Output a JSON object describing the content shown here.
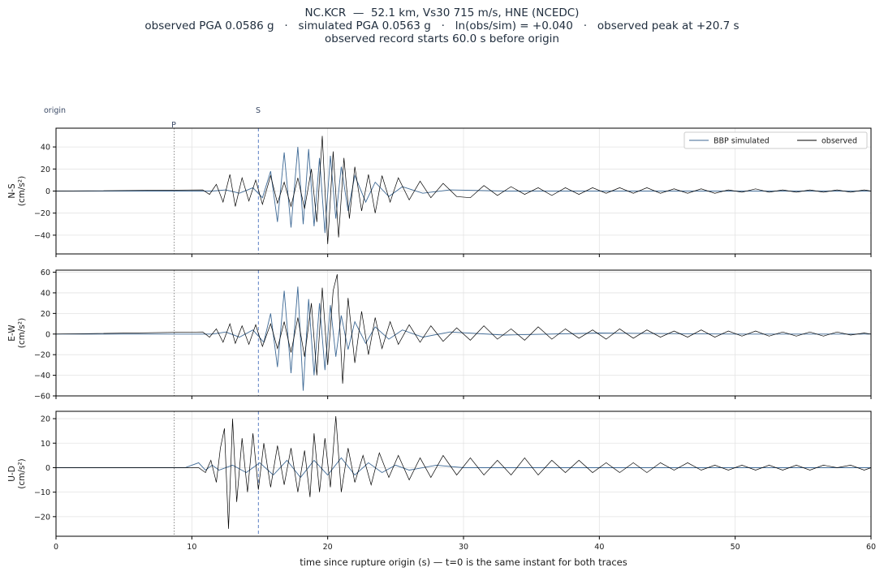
{
  "title": {
    "line1": "NC.KCR  —  52.1 km, Vs30 715 m/s, HNE (NCEDC)",
    "line2": "observed PGA 0.0586 g   ·   simulated PGA 0.0563 g   ·   ln(obs/sim) = +0.040   ·   observed peak at +20.7 s",
    "line3": "observed record starts 60.0 s before origin"
  },
  "colors": {
    "simulated": "#3f6a96",
    "observed": "#000000",
    "s_marker": "#5b7fc4",
    "p_marker": "#888888",
    "grid": "#e3e3e3"
  },
  "chart_data": {
    "type": "line",
    "x_range": [
      0,
      60
    ],
    "xlabel": "time since rupture origin (s)   —   t=0 is the same instant for both traces",
    "x_ticks": [
      0,
      10,
      20,
      30,
      40,
      50,
      60
    ],
    "markers": {
      "origin_label": "origin",
      "origin_t": 0,
      "p_label": "P",
      "p_t": 8.7,
      "s_label": "S",
      "s_t": 14.9
    },
    "legend": {
      "location": "top-right",
      "entries": [
        "BBP simulated",
        "observed"
      ]
    },
    "grid": true,
    "panels": [
      {
        "ylabel": "N-S",
        "yunit": "(cm/s²)",
        "ylim": [
          -57,
          57
        ],
        "y_ticks": [
          -40,
          -20,
          0,
          20,
          40
        ],
        "series": [
          {
            "name": "BBP simulated",
            "t": [
              0,
              10,
              11.5,
              12.5,
              13.5,
              14.5,
              15.2,
              15.8,
              16.3,
              16.8,
              17.3,
              17.8,
              18.2,
              18.6,
              19.0,
              19.4,
              19.8,
              20.2,
              20.6,
              21.0,
              21.5,
              22.0,
              22.8,
              23.5,
              24.5,
              25.5,
              27,
              29,
              33,
              40,
              50,
              60
            ],
            "values": [
              0,
              0,
              0,
              1,
              -2,
              3,
              -6,
              18,
              -28,
              35,
              -33,
              40,
              -30,
              38,
              -32,
              30,
              -38,
              32,
              -25,
              22,
              -18,
              14,
              -10,
              8,
              -5,
              4,
              -2,
              1,
              0,
              0,
              0,
              0
            ]
          },
          {
            "name": "observed",
            "t": [
              0,
              10.8,
              11.3,
              11.8,
              12.3,
              12.8,
              13.2,
              13.7,
              14.2,
              14.7,
              15.2,
              15.8,
              16.3,
              16.8,
              17.3,
              17.8,
              18.3,
              18.8,
              19.2,
              19.6,
              20.0,
              20.4,
              20.8,
              21.2,
              21.6,
              22.0,
              22.5,
              23.0,
              23.5,
              24.0,
              24.6,
              25.2,
              26.0,
              26.8,
              27.6,
              28.5,
              29.5,
              30.5,
              31.5,
              32.5,
              33.5,
              34.5,
              35.5,
              36.5,
              37.5,
              38.5,
              39.5,
              40.5,
              41.5,
              42.5,
              43.5,
              44.5,
              45.5,
              46.5,
              47.5,
              48.5,
              49.5,
              50.5,
              51.5,
              52.5,
              53.5,
              54.5,
              55.5,
              56.5,
              57.5,
              58.5,
              59.5,
              60
            ],
            "values": [
              0,
              1,
              -3,
              6,
              -10,
              15,
              -14,
              12,
              -9,
              10,
              -12,
              14,
              -11,
              8,
              -14,
              12,
              -16,
              20,
              -28,
              50,
              -48,
              36,
              -42,
              30,
              -25,
              22,
              -18,
              15,
              -20,
              14,
              -10,
              12,
              -8,
              9,
              -6,
              7,
              -5,
              -6,
              5,
              -4,
              4,
              -3,
              3,
              -4,
              3,
              -3,
              3,
              -2,
              3,
              -2,
              3,
              -2,
              2,
              -2,
              2,
              -2,
              1,
              -1,
              2,
              -1,
              1,
              -1,
              1,
              -1,
              1,
              -1,
              1,
              0
            ]
          }
        ]
      },
      {
        "ylabel": "E-W",
        "yunit": "(cm/s²)",
        "ylim": [
          -60,
          62
        ],
        "y_ticks": [
          -60,
          -40,
          -20,
          0,
          20,
          40,
          60
        ],
        "series": [
          {
            "name": "BBP simulated",
            "t": [
              0,
              10,
              11.5,
              12.5,
              13.5,
              14.5,
              15.3,
              15.8,
              16.3,
              16.8,
              17.3,
              17.8,
              18.2,
              18.6,
              19.0,
              19.4,
              19.8,
              20.2,
              20.6,
              21.0,
              21.5,
              22.0,
              22.8,
              23.5,
              24.5,
              25.5,
              27,
              29,
              33,
              40,
              50,
              60
            ],
            "values": [
              0,
              0,
              0,
              2,
              -3,
              4,
              -8,
              20,
              -32,
              42,
              -38,
              46,
              -55,
              34,
              -40,
              30,
              -35,
              28,
              -22,
              18,
              -15,
              12,
              -9,
              7,
              -5,
              4,
              -3,
              2,
              -1,
              1,
              0,
              0
            ]
          },
          {
            "name": "observed",
            "t": [
              0,
              10.8,
              11.3,
              11.8,
              12.3,
              12.8,
              13.2,
              13.7,
              14.2,
              14.7,
              15.2,
              15.8,
              16.3,
              16.8,
              17.3,
              17.8,
              18.3,
              18.8,
              19.2,
              19.6,
              20.0,
              20.4,
              20.7,
              21.1,
              21.5,
              22.0,
              22.5,
              23.0,
              23.5,
              24.0,
              24.6,
              25.2,
              26.0,
              26.8,
              27.6,
              28.5,
              29.5,
              30.5,
              31.5,
              32.5,
              33.5,
              34.5,
              35.5,
              36.5,
              37.5,
              38.5,
              39.5,
              40.5,
              41.5,
              42.5,
              43.5,
              44.5,
              45.5,
              46.5,
              47.5,
              48.5,
              49.5,
              50.5,
              51.5,
              52.5,
              53.5,
              54.5,
              55.5,
              56.5,
              57.5,
              58.5,
              59.5,
              60
            ],
            "values": [
              0,
              2,
              -3,
              5,
              -8,
              10,
              -9,
              8,
              -10,
              9,
              -12,
              10,
              -14,
              12,
              -18,
              16,
              -22,
              30,
              -40,
              45,
              -30,
              42,
              58,
              -48,
              35,
              -28,
              22,
              -20,
              16,
              -14,
              12,
              -10,
              9,
              -8,
              8,
              -7,
              6,
              -6,
              8,
              -5,
              5,
              -6,
              7,
              -5,
              5,
              -4,
              4,
              -5,
              5,
              -4,
              4,
              -3,
              3,
              -3,
              4,
              -3,
              3,
              -2,
              3,
              -2,
              2,
              -2,
              2,
              -2,
              2,
              -1,
              1,
              0
            ]
          }
        ]
      },
      {
        "ylabel": "U-D",
        "yunit": "(cm/s²)",
        "ylim": [
          -28,
          23
        ],
        "y_ticks": [
          -20,
          -10,
          0,
          10,
          20
        ],
        "series": [
          {
            "name": "BBP simulated",
            "t": [
              0,
              9.5,
              10,
              10.5,
              11,
              11.5,
              12,
              13,
              14,
              15,
              16,
              17,
              18,
              19,
              20,
              21,
              22,
              23,
              24,
              25,
              26,
              28,
              30,
              33,
              37,
              42,
              48,
              60
            ],
            "values": [
              0,
              0,
              1,
              2,
              -1,
              1,
              -1,
              1,
              -2,
              2,
              -3,
              3,
              -4,
              3,
              -3,
              4,
              -3,
              2,
              -2,
              1,
              -1,
              1,
              0,
              0,
              0,
              0,
              0,
              0
            ]
          },
          {
            "name": "observed",
            "t": [
              0,
              10.5,
              11,
              11.4,
              11.8,
              12.1,
              12.4,
              12.7,
              13.0,
              13.3,
              13.7,
              14.1,
              14.5,
              14.9,
              15.3,
              15.8,
              16.3,
              16.8,
              17.3,
              17.8,
              18.3,
              18.7,
              19.0,
              19.4,
              19.8,
              20.2,
              20.6,
              21.0,
              21.5,
              22.0,
              22.6,
              23.2,
              23.8,
              24.5,
              25.2,
              26.0,
              26.8,
              27.6,
              28.5,
              29.5,
              30.5,
              31.5,
              32.5,
              33.5,
              34.5,
              35.5,
              36.5,
              37.5,
              38.5,
              39.5,
              40.5,
              41.5,
              42.5,
              43.5,
              44.5,
              45.5,
              46.5,
              47.5,
              48.5,
              49.5,
              50.5,
              51.5,
              52.5,
              53.5,
              54.5,
              55.5,
              56.5,
              57.5,
              58.5,
              59.5,
              60
            ],
            "values": [
              0,
              0,
              -2,
              3,
              -6,
              8,
              16,
              -25,
              20,
              -14,
              12,
              -10,
              14,
              -9,
              10,
              -8,
              9,
              -7,
              8,
              -10,
              7,
              -12,
              14,
              -10,
              12,
              -8,
              21,
              -10,
              8,
              -6,
              5,
              -7,
              6,
              -4,
              5,
              -5,
              4,
              -4,
              5,
              -3,
              4,
              -3,
              3,
              -3,
              4,
              -3,
              3,
              -2,
              3,
              -2,
              2,
              -2,
              2,
              -2,
              2,
              -1,
              2,
              -1,
              1,
              -1,
              1,
              -1,
              1,
              -1,
              1,
              -1,
              1,
              0,
              1,
              -1,
              0
            ]
          }
        ]
      }
    ]
  }
}
